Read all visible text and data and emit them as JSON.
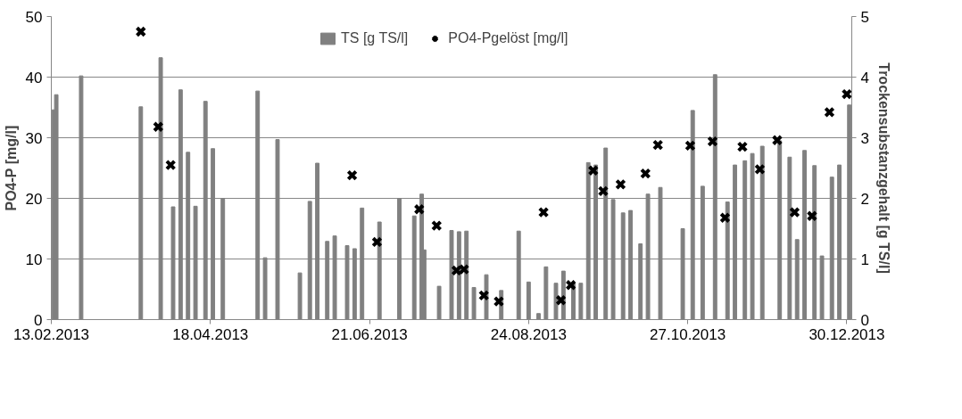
{
  "chart_data": {
    "type": "bar",
    "ylabel": "PO4-P [mg/l]",
    "y2label": "Trockensubstanzgehalt [g TS/l]",
    "xlim": [
      "2013-02-13",
      "2014-01-01"
    ],
    "xticks": [
      {
        "value": "2013-02-13",
        "label": "13.02.2013"
      },
      {
        "value": "2013-04-18",
        "label": "18.04.2013"
      },
      {
        "value": "2013-06-21",
        "label": "21.06.2013"
      },
      {
        "value": "2013-08-24",
        "label": "24.08.2013"
      },
      {
        "value": "2013-10-27",
        "label": "27.10.2013"
      },
      {
        "value": "2013-12-30",
        "label": "30.12.2013"
      }
    ],
    "ylim": [
      0,
      50
    ],
    "yticks": [
      0,
      10,
      20,
      30,
      40,
      50
    ],
    "y2lim": [
      0,
      5
    ],
    "y2ticks": [
      0,
      1,
      2,
      3,
      4,
      5
    ],
    "grid": "y",
    "legend": "top",
    "series": [
      {
        "name": "TS [g TS/l]",
        "type": "bar",
        "axis": "y2",
        "color": "#808080",
        "x": [
          "2013-02-14",
          "2013-02-15",
          "2013-02-25",
          "2013-03-21",
          "2013-03-29",
          "2013-04-03",
          "2013-04-06",
          "2013-04-09",
          "2013-04-12",
          "2013-04-16",
          "2013-04-19",
          "2013-04-23",
          "2013-05-07",
          "2013-05-10",
          "2013-05-15",
          "2013-05-24",
          "2013-05-28",
          "2013-05-31",
          "2013-06-04",
          "2013-06-07",
          "2013-06-12",
          "2013-06-15",
          "2013-06-18",
          "2013-06-25",
          "2013-07-03",
          "2013-07-09",
          "2013-07-12",
          "2013-07-13",
          "2013-07-19",
          "2013-07-24",
          "2013-07-27",
          "2013-07-30",
          "2013-08-02",
          "2013-08-07",
          "2013-08-13",
          "2013-08-20",
          "2013-08-24",
          "2013-08-28",
          "2013-08-31",
          "2013-09-04",
          "2013-09-07",
          "2013-09-11",
          "2013-09-14",
          "2013-09-17",
          "2013-09-20",
          "2013-09-24",
          "2013-09-27",
          "2013-10-01",
          "2013-10-04",
          "2013-10-08",
          "2013-10-11",
          "2013-10-16",
          "2013-10-25",
          "2013-10-29",
          "2013-11-02",
          "2013-11-07",
          "2013-11-12",
          "2013-11-15",
          "2013-11-19",
          "2013-11-22",
          "2013-11-26",
          "2013-12-03",
          "2013-12-07",
          "2013-12-10",
          "2013-12-13",
          "2013-12-17",
          "2013-12-20",
          "2013-12-24",
          "2013-12-27",
          "2013-12-31"
        ],
        "values": [
          3.46,
          3.71,
          4.02,
          3.51,
          4.32,
          1.86,
          3.79,
          2.76,
          1.87,
          3.6,
          2.82,
          2.0,
          3.77,
          1.02,
          2.97,
          0.77,
          1.95,
          2.58,
          1.29,
          1.38,
          1.22,
          1.17,
          1.84,
          1.61,
          2.0,
          1.71,
          2.07,
          1.15,
          0.55,
          1.47,
          1.45,
          1.46,
          0.53,
          0.74,
          0.48,
          1.46,
          0.62,
          0.1,
          0.87,
          0.6,
          0.8,
          0.6,
          0.6,
          2.59,
          2.55,
          2.83,
          1.98,
          1.76,
          1.8,
          1.25,
          2.07,
          2.18,
          1.5,
          3.45,
          2.2,
          4.04,
          1.94,
          2.55,
          2.62,
          2.74,
          2.86,
          2.95,
          2.68,
          1.32,
          2.79,
          2.54,
          1.05,
          2.35,
          2.55,
          3.54
        ]
      },
      {
        "name": "PO4-Pgelöst [mg/l]",
        "type": "scatter",
        "marker": "cross",
        "color": "#000000",
        "x": [
          "2013-03-21",
          "2013-03-28",
          "2013-04-02",
          "2013-06-14",
          "2013-06-24",
          "2013-07-11",
          "2013-07-18",
          "2013-07-26",
          "2013-07-29",
          "2013-08-06",
          "2013-08-12",
          "2013-08-30",
          "2013-09-06",
          "2013-09-10",
          "2013-09-19",
          "2013-09-23",
          "2013-09-30",
          "2013-10-10",
          "2013-10-15",
          "2013-10-28",
          "2013-11-06",
          "2013-11-11",
          "2013-11-18",
          "2013-11-25",
          "2013-12-02",
          "2013-12-09",
          "2013-12-16",
          "2013-12-23",
          "2013-12-30"
        ],
        "values": [
          47.5,
          31.8,
          25.5,
          23.8,
          12.8,
          18.2,
          15.5,
          8.1,
          8.3,
          4.0,
          3.0,
          17.7,
          3.2,
          5.7,
          24.6,
          21.2,
          22.3,
          24.1,
          28.8,
          28.7,
          29.4,
          16.8,
          28.5,
          24.8,
          29.6,
          17.7,
          17.1,
          34.2,
          37.2
        ]
      }
    ]
  }
}
